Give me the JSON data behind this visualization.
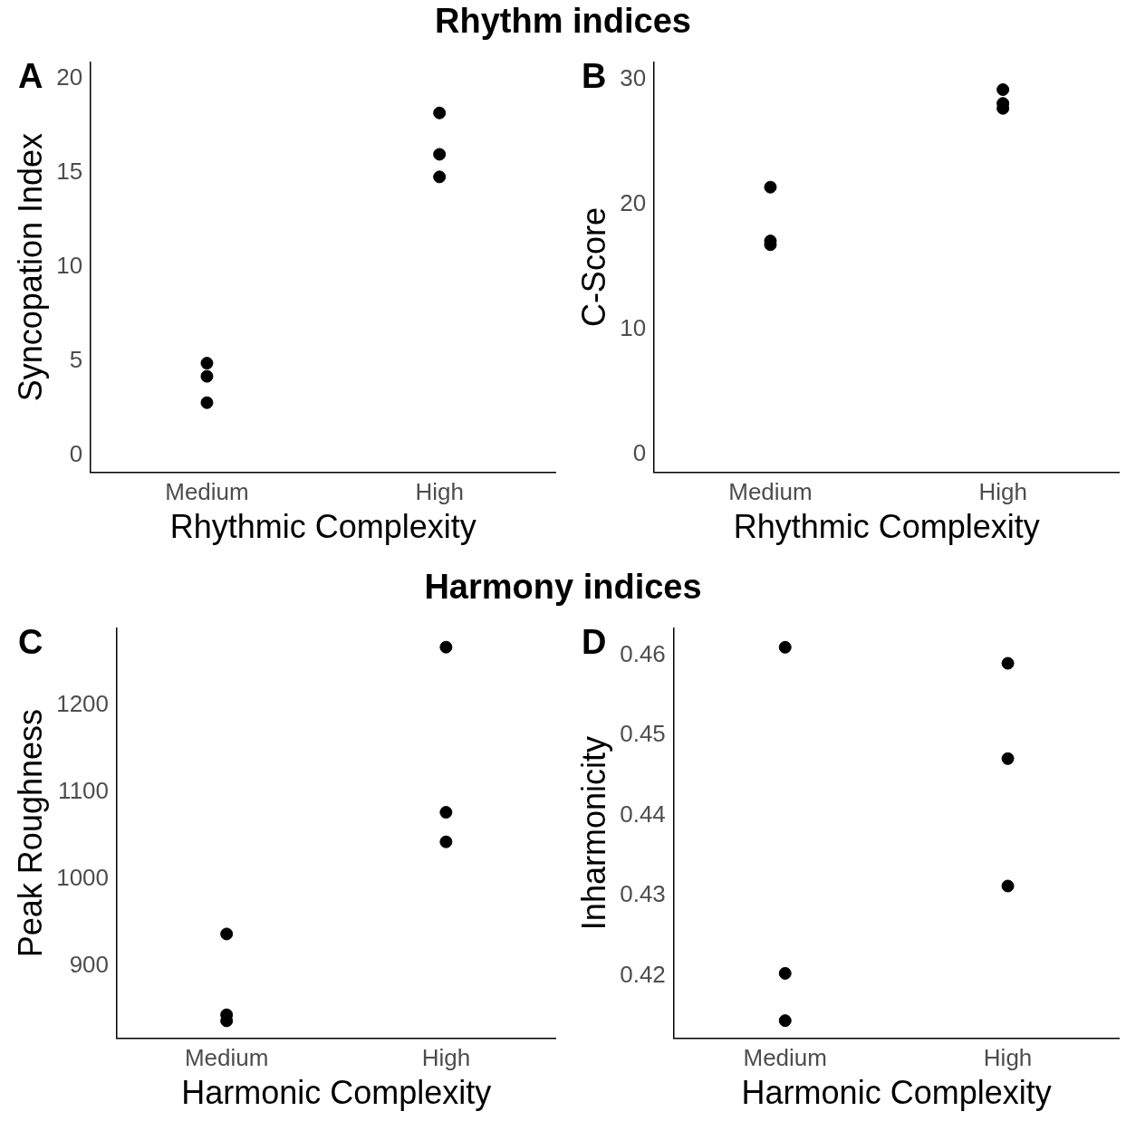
{
  "chart_data": [
    {
      "type": "scatter",
      "subtitle": "Rhythm indices",
      "title": "A",
      "xlabel": "Rhythmic Complexity",
      "ylabel": "Syncopation Index",
      "categories": [
        "Medium",
        "High"
      ],
      "series": [
        {
          "color": "#000000",
          "x": [
            "Medium",
            "Medium",
            "Medium",
            "High",
            "High",
            "High"
          ],
          "values": [
            4.9,
            4.2,
            2.8,
            18.2,
            16.0,
            14.8
          ]
        }
      ],
      "ylim": [
        -0.9,
        20.9
      ],
      "yticks": [
        0,
        5,
        10,
        15,
        20
      ],
      "grid": false,
      "legend": false,
      "marker": "circle"
    },
    {
      "type": "scatter",
      "title": "B",
      "xlabel": "Rhythmic Complexity",
      "ylabel": "C-Score",
      "categories": [
        "Medium",
        "High"
      ],
      "series": [
        {
          "color": "#000000",
          "x": [
            "Medium",
            "Medium",
            "Medium",
            "High",
            "High",
            "High"
          ],
          "values": [
            21.4,
            16.8,
            17.1,
            29.2,
            28.1,
            27.7
          ]
        }
      ],
      "ylim": [
        -1.4,
        31.4
      ],
      "yticks": [
        0,
        10,
        20,
        30
      ],
      "grid": false,
      "legend": false,
      "marker": "circle"
    },
    {
      "type": "scatter",
      "subtitle": "Harmony indices",
      "title": "C",
      "xlabel": "Harmonic Complexity",
      "ylabel": "Peak Roughness",
      "categories": [
        "Medium",
        "High"
      ],
      "series": [
        {
          "color": "#000000",
          "x": [
            "Medium",
            "Medium",
            "Medium",
            "High",
            "High",
            "High"
          ],
          "values": [
            844,
            837,
            937,
            1267,
            1077,
            1043
          ]
        }
      ],
      "ylim": [
        817,
        1289
      ],
      "yticks": [
        900,
        1000,
        1100,
        1200
      ],
      "grid": false,
      "legend": false,
      "marker": "circle"
    },
    {
      "type": "scatter",
      "title": "D",
      "xlabel": "Harmonic Complexity",
      "ylabel": "Inharmonicity",
      "categories": [
        "Medium",
        "High"
      ],
      "series": [
        {
          "color": "#000000",
          "x": [
            "Medium",
            "Medium",
            "Medium",
            "High",
            "High",
            "High"
          ],
          "values": [
            0.461,
            0.4203,
            0.4144,
            0.459,
            0.4471,
            0.4312
          ]
        }
      ],
      "ylim": [
        0.4122,
        0.4634
      ],
      "yticks": [
        {
          "value": 0.42,
          "label": "0.42"
        },
        {
          "value": 0.43,
          "label": "0.43"
        },
        {
          "value": 0.44,
          "label": "0.44"
        },
        {
          "value": 0.45,
          "label": "0.45"
        },
        {
          "value": 0.46,
          "label": "0.46"
        }
      ],
      "grid": false,
      "legend": false,
      "marker": "circle"
    }
  ]
}
